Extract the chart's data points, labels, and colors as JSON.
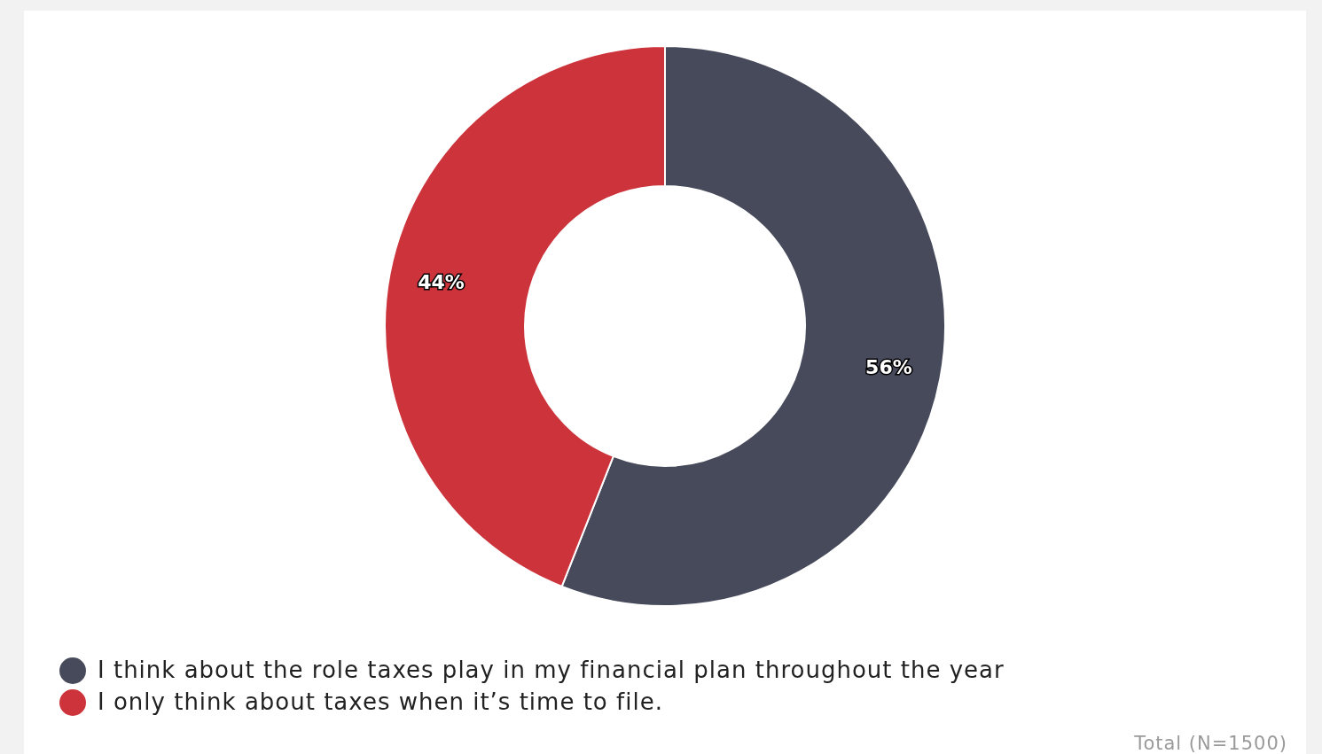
{
  "chart_data": {
    "type": "donut",
    "categories": [
      "I think about the role taxes play in my financial plan throughout the year",
      "I only think about taxes when it’s time to file."
    ],
    "values": [
      56,
      44
    ],
    "colors": [
      "#474a5b",
      "#cc333b"
    ],
    "value_labels": [
      "56%",
      "44%"
    ],
    "legend": "bottom left",
    "annotations": [
      "Total (N=1500)"
    ]
  }
}
